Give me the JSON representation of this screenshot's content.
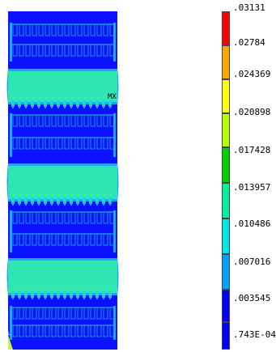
{
  "plot": {
    "max_marker": "MX",
    "colors": {
      "background": "#0a12ff",
      "band": "#2de6b4",
      "band_edge": "#1ea6ff",
      "ridge": "#22d4cc",
      "corner": "#c8f046"
    }
  },
  "legend": {
    "levels": [
      {
        "label": ".03131",
        "color": "#ff0000"
      },
      {
        "label": ".02784",
        "color": "#ffa500"
      },
      {
        "label": ".024369",
        "color": "#ffff00"
      },
      {
        "label": ".020898",
        "color": "#b4ff00"
      },
      {
        "label": ".017428",
        "color": "#00d200"
      },
      {
        "label": ".013957",
        "color": "#00f0a0"
      },
      {
        "label": ".010486",
        "color": "#00e6e6"
      },
      {
        "label": ".007016",
        "color": "#00a0ff"
      },
      {
        "label": ".003545",
        "color": "#0000ff"
      },
      {
        "label": ".743E-04",
        "color": "#0000ff"
      }
    ]
  }
}
